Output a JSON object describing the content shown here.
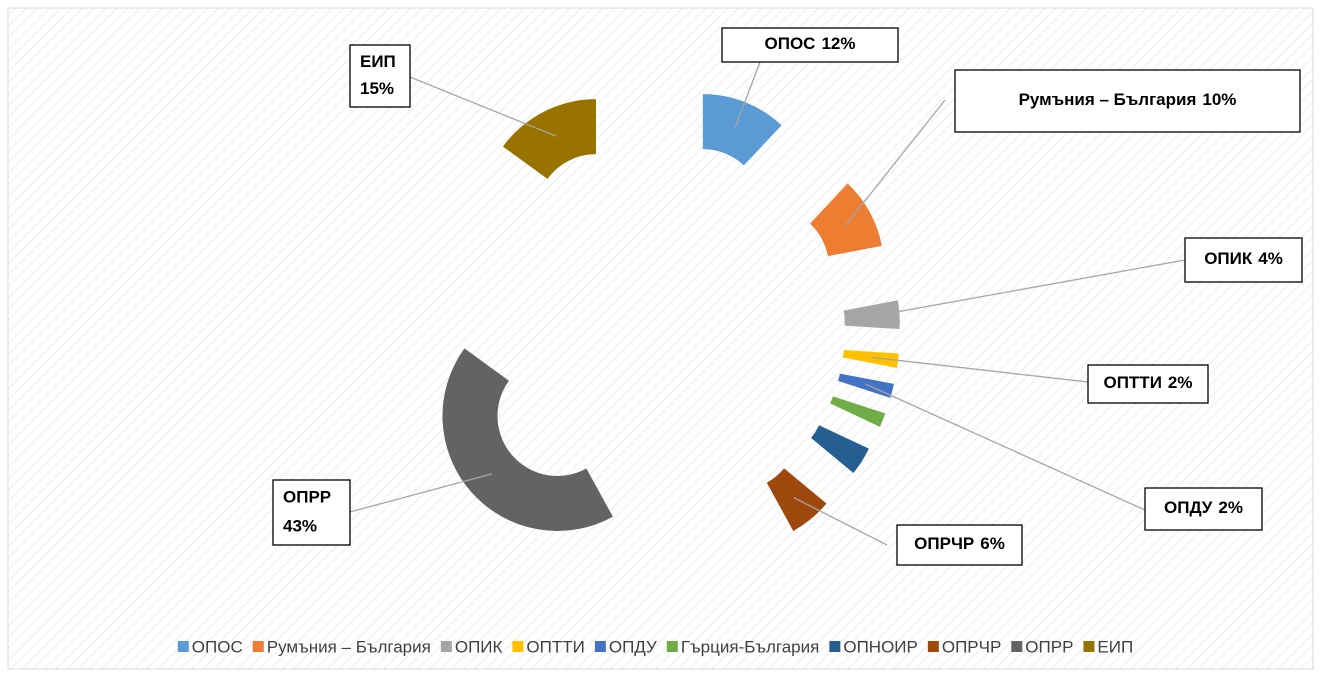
{
  "chart_data": {
    "type": "doughnut",
    "categories": [
      "ОПОС",
      "Румъния – България",
      "ОПИК",
      "ОПТТИ",
      "ОПДУ",
      "Гърция-България",
      "ОПНОИР",
      "ОПРЧР",
      "ОПРР",
      "ЕИП"
    ],
    "values": [
      12,
      10,
      4,
      2,
      2,
      2,
      4,
      6,
      43,
      15
    ],
    "value_labels": [
      "12%",
      "10%",
      "4%",
      "2%",
      "2%",
      null,
      null,
      "6%",
      "43%",
      "15%"
    ],
    "colors": [
      "#5b9bd5",
      "#ed7d31",
      "#a5a5a5",
      "#ffc000",
      "#4472c4",
      "#70ad47",
      "#255e91",
      "#9e480e",
      "#636363",
      "#997300"
    ],
    "legend": "bottom"
  }
}
